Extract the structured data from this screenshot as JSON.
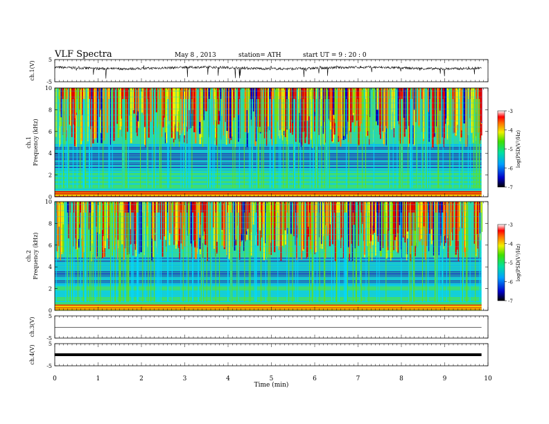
{
  "header": {
    "title": "VLF  Spectra",
    "date": "May 8 , 2013",
    "station": "station= ATH",
    "start": "start  UT =  9 : 20 : 0"
  },
  "chart_data": [
    {
      "type": "line",
      "ylabel": "ch.1(V)",
      "ylim": [
        -5,
        5
      ],
      "yticks": [
        "5",
        "-5"
      ],
      "series": [
        {
          "values": [
            1.2,
            -0.6
          ]
        }
      ]
    },
    {
      "type": "heatmap",
      "ylabel": "ch.1\nFrequency  (kHz)",
      "ylim": [
        0,
        10
      ],
      "yticks": [
        "0",
        "2",
        "4",
        "6",
        "8",
        "10"
      ],
      "colorbar": {
        "label": "log(PSD(V²/Hz)",
        "ticks": [
          "-3",
          "-4",
          "-5",
          "-6",
          "-7"
        ],
        "range": [
          -7,
          -3
        ]
      }
    },
    {
      "type": "heatmap",
      "ylabel": "ch.2\nFrequency  (kHz)",
      "ylim": [
        0,
        10
      ],
      "yticks": [
        "0",
        "2",
        "4",
        "6",
        "8",
        "10"
      ],
      "colorbar": {
        "label": "log(PSD(V²/Hz)",
        "ticks": [
          "-3",
          "-4",
          "-5",
          "-6",
          "-7"
        ],
        "range": [
          -7,
          -3
        ]
      }
    },
    {
      "type": "line",
      "ylabel": "ch.3(V)",
      "ylim": [
        -5,
        5
      ],
      "yticks": [
        "5",
        "-5"
      ]
    },
    {
      "type": "line",
      "ylabel": "ch.4(V)",
      "ylim": [
        -5,
        5
      ],
      "yticks": [
        "5",
        "-5"
      ],
      "xlabel": "Time  (min)",
      "xlim": [
        0,
        10
      ],
      "xticks": [
        "0",
        "1",
        "2",
        "3",
        "4",
        "5",
        "6",
        "7",
        "8",
        "9",
        "10"
      ]
    }
  ]
}
